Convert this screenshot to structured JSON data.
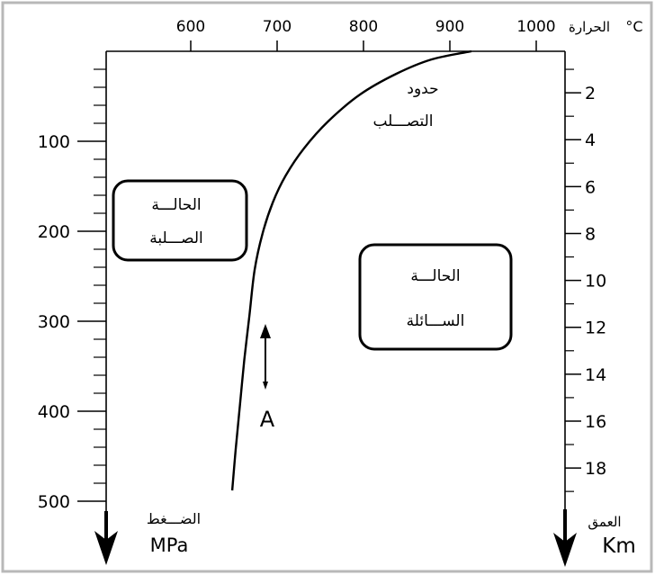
{
  "chart_data": {
    "type": "line",
    "grid": false,
    "x_axis": {
      "label": "الحرارة",
      "unit": "°C",
      "position": "top",
      "ticks": [
        600,
        700,
        800,
        900,
        1000
      ],
      "range": [
        500,
        1030
      ]
    },
    "y_axis": {
      "label": "الضـــغط",
      "unit": "MPa",
      "position": "left",
      "inverted": true,
      "ticks": [
        100,
        200,
        300,
        400,
        500
      ],
      "range": [
        0,
        510
      ]
    },
    "y2_axis": {
      "label": "العمق",
      "unit": "Km",
      "position": "right",
      "inverted": true,
      "ticks": [
        2,
        4,
        6,
        8,
        10,
        12,
        14,
        16,
        18
      ],
      "range": [
        0,
        19.5
      ]
    },
    "series": [
      {
        "label": [
          "حدود",
          "التصـــلب"
        ],
        "x": [
          648,
          652,
          657,
          662,
          668,
          674,
          683,
          695,
          710,
          731,
          759,
          796,
          838,
          879,
          925
        ],
        "y": [
          488,
          443,
          393,
          343,
          293,
          243,
          203,
          168,
          138,
          108,
          78,
          48,
          25,
          9,
          0
        ]
      }
    ],
    "regions": [
      {
        "label": [
          "الحالـــة",
          "الصـــلبة"
        ]
      },
      {
        "label": [
          "الحالـــة",
          "الســـائلة"
        ]
      }
    ],
    "annotations": [
      {
        "text": "A",
        "arrow": "up"
      }
    ]
  }
}
